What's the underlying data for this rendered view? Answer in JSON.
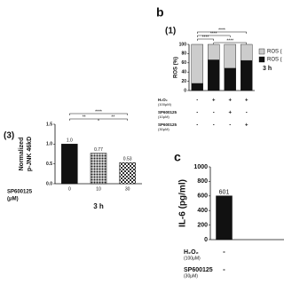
{
  "panel_labels": {
    "b": "b",
    "c": "c"
  },
  "chart_data": [
    {
      "type": "stacked_bar",
      "panel": "(1)",
      "ylabel": "ROS (%)",
      "ylim": [
        0,
        100
      ],
      "yticks": [
        0,
        20,
        40,
        60,
        80,
        100
      ],
      "series": [
        {
          "name": "ROS (",
          "color": "#111111",
          "values": [
            15.4,
            66.4,
            48.3,
            65.1
          ]
        },
        {
          "name": "ROS (",
          "color": "#cccccc",
          "values": [
            84.6,
            33.6,
            51.7,
            34.9
          ]
        }
      ],
      "annotation": "3 h",
      "significance": [
        "****",
        "****",
        "****",
        "****"
      ],
      "conditions": [
        {
          "label": "H₂O₂",
          "sublabel": "(100μM)",
          "signs": [
            "-",
            "+",
            "+",
            "+"
          ]
        },
        {
          "label": "SP600125",
          "sublabel": "(10μM)",
          "signs": [
            "-",
            "-",
            "+",
            "-"
          ]
        },
        {
          "label": "SP600125",
          "sublabel": "(30μM)",
          "signs": [
            "-",
            "-",
            "-",
            "+"
          ]
        }
      ]
    },
    {
      "type": "bar",
      "panel": "(3)",
      "ylabel": [
        "Normalized",
        "p-JNK 46kD"
      ],
      "ylim": [
        0,
        1.5
      ],
      "yticks": [
        {
          "value": 0,
          "label": "0.0"
        },
        {
          "value": 0.5,
          "label": "0.5"
        },
        {
          "value": 1,
          "label": "1.0"
        },
        {
          "value": 1.5,
          "label": "1.5"
        }
      ],
      "categories": [
        "0",
        "10",
        "30"
      ],
      "values": [
        1.0,
        0.77,
        0.53
      ],
      "value_labels": [
        "1.0",
        "0.77",
        "0.53"
      ],
      "colors": [
        "#111111",
        "#444444",
        "#777777"
      ],
      "patterns": [
        "solid",
        "dots",
        "check"
      ],
      "xlabel": [
        "SP600125",
        "(μM)"
      ],
      "annotation": "3 h",
      "significance": [
        "****",
        "**",
        "**"
      ]
    },
    {
      "type": "bar",
      "ylabel": "IL-6 (pg/ml)",
      "ylim": [
        0,
        1000
      ],
      "yticks": [
        0,
        200,
        400,
        600,
        800,
        1000
      ],
      "values": [
        601
      ],
      "colors": [
        "#111111"
      ],
      "patterns": [
        "solid"
      ],
      "conditions": [
        {
          "label": "H₂O₂",
          "sublabel": "(100μM)",
          "signs": [
            "-"
          ]
        },
        {
          "label": "SP600125",
          "sublabel": "(30μM)",
          "signs": [
            "-"
          ]
        }
      ]
    }
  ]
}
